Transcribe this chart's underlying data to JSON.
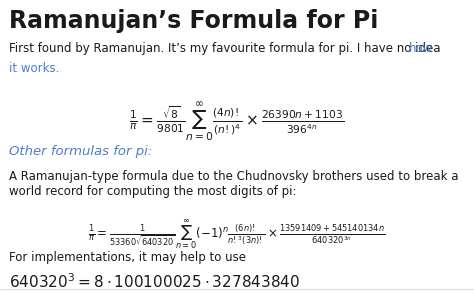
{
  "title": "Ramanujan’s Formula for Pi",
  "subtitle_black": "First found by Ramanujan. It’s my favourite formula for pi. I have no idea ",
  "subtitle_link_1": "how",
  "subtitle_link_2": "it works.",
  "section_header": "Other formulas for pi:",
  "body_text": "A Ramanujan-type formula due to the Chudnovsky brothers used to break a\nworld record for computing the most digits of pi:",
  "impl_text": "For implementations, it may help to use",
  "bg_color": "#ffffff",
  "title_color": "#1a1a1a",
  "link_color": "#4a7ec7",
  "section_color": "#4a7ec7",
  "body_color": "#1a1a1a",
  "title_fontsize": 17,
  "body_fontsize": 8.5,
  "formula1_fontsize": 11,
  "formula2_fontsize": 8.5,
  "section_fontsize": 9.5,
  "impl_formula_fontsize": 11
}
